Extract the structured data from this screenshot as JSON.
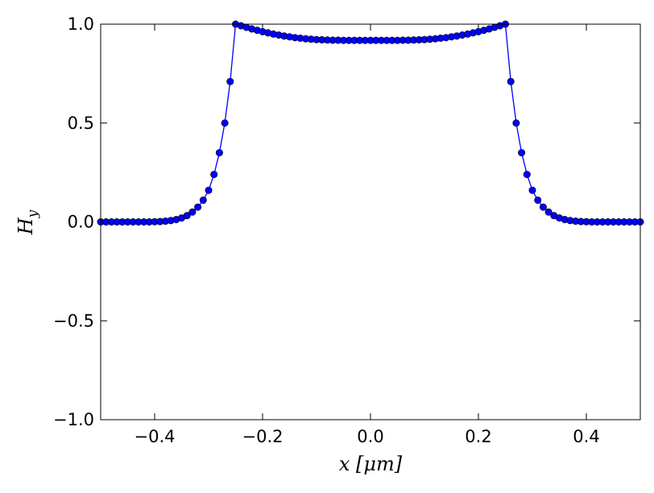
{
  "chart_data": {
    "type": "line",
    "title": "",
    "xlabel": "x [μm]",
    "ylabel": "H_y",
    "xlim": [
      -0.5,
      0.5
    ],
    "ylim": [
      -1.0,
      1.0
    ],
    "xticks": [
      -0.4,
      -0.2,
      0.0,
      0.2,
      0.4
    ],
    "xtick_labels": [
      "−0.4",
      "−0.2",
      "0.0",
      "0.2",
      "0.4"
    ],
    "yticks": [
      1.0,
      0.5,
      0.0,
      -0.5,
      -1.0
    ],
    "ytick_labels": [
      "1.0",
      "0.5",
      "0.0",
      "−0.5",
      "−1.0"
    ],
    "grid": false,
    "legend": "none",
    "line_color": "#0000ff",
    "marker": "circle",
    "series": [
      {
        "x": [
          -0.5,
          -0.49,
          -0.48,
          -0.47,
          -0.46,
          -0.45,
          -0.44,
          -0.43,
          -0.42,
          -0.41,
          -0.4,
          -0.39,
          -0.38,
          -0.37,
          -0.36,
          -0.35,
          -0.34,
          -0.33,
          -0.32,
          -0.31,
          -0.3,
          -0.29,
          -0.28,
          -0.27,
          -0.26,
          -0.25,
          -0.24,
          -0.23,
          -0.22,
          -0.21,
          -0.2,
          -0.19,
          -0.18,
          -0.17,
          -0.16,
          -0.15,
          -0.14,
          -0.13,
          -0.12,
          -0.11,
          -0.1,
          -0.09,
          -0.08,
          -0.07,
          -0.06,
          -0.05,
          -0.04,
          -0.03,
          -0.02,
          -0.01,
          0.0,
          0.01,
          0.02,
          0.03,
          0.04,
          0.05,
          0.06,
          0.07,
          0.08,
          0.09,
          0.1,
          0.11,
          0.12,
          0.13,
          0.14,
          0.15,
          0.16,
          0.17,
          0.18,
          0.19,
          0.2,
          0.21,
          0.22,
          0.23,
          0.24,
          0.25,
          0.26,
          0.27,
          0.28,
          0.29,
          0.3,
          0.31,
          0.32,
          0.33,
          0.34,
          0.35,
          0.36,
          0.37,
          0.38,
          0.39,
          0.4,
          0.41,
          0.42,
          0.43,
          0.44,
          0.45,
          0.46,
          0.47,
          0.48,
          0.49,
          0.5
        ],
        "y": [
          0.0,
          0.0,
          0.0,
          0.0,
          0.0,
          0.0,
          0.0,
          0.0,
          0.0,
          0.0,
          0.001,
          0.002,
          0.004,
          0.007,
          0.012,
          0.02,
          0.032,
          0.05,
          0.075,
          0.11,
          0.16,
          0.24,
          0.35,
          0.5,
          0.71,
          1.0,
          0.992,
          0.984,
          0.976,
          0.969,
          0.962,
          0.956,
          0.95,
          0.945,
          0.94,
          0.936,
          0.932,
          0.929,
          0.926,
          0.924,
          0.922,
          0.921,
          0.92,
          0.919,
          0.919,
          0.918,
          0.918,
          0.918,
          0.918,
          0.918,
          0.918,
          0.918,
          0.918,
          0.918,
          0.918,
          0.918,
          0.919,
          0.919,
          0.92,
          0.921,
          0.922,
          0.924,
          0.926,
          0.929,
          0.932,
          0.936,
          0.94,
          0.945,
          0.95,
          0.956,
          0.962,
          0.969,
          0.976,
          0.984,
          0.992,
          1.0,
          0.71,
          0.5,
          0.35,
          0.24,
          0.16,
          0.11,
          0.075,
          0.05,
          0.032,
          0.02,
          0.012,
          0.007,
          0.004,
          0.002,
          0.001,
          0.0,
          0.0,
          0.0,
          0.0,
          0.0,
          0.0,
          0.0,
          0.0,
          0.0,
          0.0
        ]
      }
    ]
  }
}
